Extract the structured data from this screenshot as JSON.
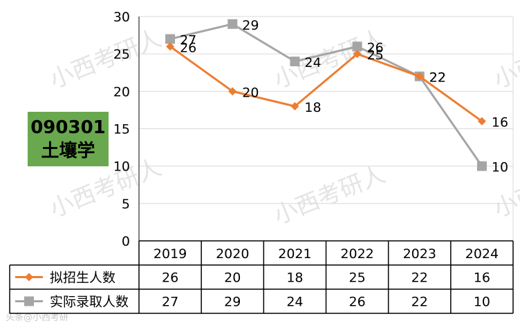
{
  "badge": {
    "code": "090301",
    "name": "土壤学"
  },
  "watermark": {
    "text": "小西考研人",
    "footer_text": "头条@小西考研"
  },
  "chart_data": {
    "type": "line",
    "categories": [
      "2019",
      "2020",
      "2021",
      "2022",
      "2023",
      "2024"
    ],
    "ylim": [
      0,
      30
    ],
    "yticks": [
      0,
      5,
      10,
      15,
      20,
      25,
      30
    ],
    "grid": true,
    "legend_position": "data-table",
    "series": [
      {
        "name": "拟招生人数",
        "color": "#ed7d31",
        "marker": "diamond",
        "values": [
          26,
          20,
          18,
          25,
          22,
          16
        ]
      },
      {
        "name": "实际录取人数",
        "color": "#a5a5a5",
        "marker": "square",
        "values": [
          27,
          29,
          24,
          26,
          22,
          10
        ]
      }
    ]
  }
}
